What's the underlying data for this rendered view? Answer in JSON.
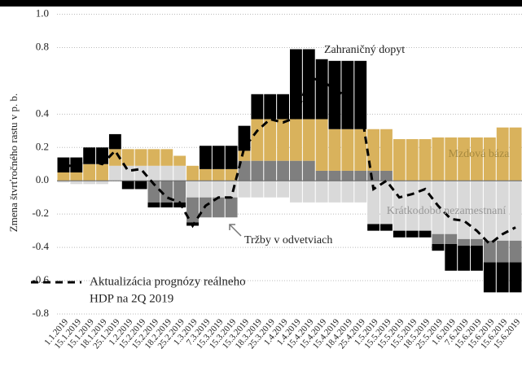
{
  "chart_data": {
    "type": "stacked_bar",
    "y_label": "Zmena štvrťročného rastu v p. b.",
    "categories": [
      "1.1.2019",
      "15.1.2019",
      "15.1.2019",
      "18.1.2019",
      "25.1.2019",
      "1.2.2019",
      "15.2.2019",
      "15.2.2019",
      "18.2.2019",
      "25.2.2019",
      "1.3.2019",
      "7.3.2019",
      "15.3.2019",
      "15.3.2019",
      "15.3.2019",
      "18.3.2019",
      "25.3.2019",
      "1.4.2019",
      "1.4.2019",
      "15.4.2019",
      "15.4.2019",
      "15.4.2019",
      "18.4.2019",
      "25.4.2019",
      "1.5.2019",
      "15.5.2019",
      "15.5.2019",
      "15.5.2019",
      "18.5.2019",
      "25.5.2019",
      "1.6.2019",
      "7.6.2019",
      "15.6.2019",
      "15.6.2019",
      "15.6.2019",
      "15.6.2019"
    ],
    "series": [
      {
        "name": "Krátkodobo nezamestnaní",
        "color": "#d9d9d9",
        "values": [
          -0.01,
          -0.02,
          -0.02,
          -0.02,
          0.09,
          0.09,
          0.09,
          0.09,
          0.09,
          0.09,
          -0.1,
          -0.1,
          -0.1,
          -0.1,
          -0.1,
          -0.1,
          -0.1,
          -0.1,
          -0.13,
          -0.13,
          -0.13,
          -0.13,
          -0.13,
          -0.13,
          -0.26,
          -0.26,
          -0.3,
          -0.3,
          -0.3,
          -0.32,
          -0.32,
          -0.35,
          -0.35,
          -0.36,
          -0.36,
          -0.36
        ]
      },
      {
        "name": "Tržby v odvetviach",
        "color": "#7f7f7f",
        "values": [
          0,
          0,
          0,
          0,
          0,
          0,
          0,
          -0.13,
          -0.13,
          -0.13,
          -0.15,
          -0.12,
          -0.12,
          -0.12,
          0.12,
          0.12,
          0.12,
          0.12,
          0.12,
          0.12,
          0.06,
          0.06,
          0.06,
          0.06,
          0.06,
          0.06,
          0,
          0,
          0,
          -0.06,
          -0.06,
          -0.04,
          -0.04,
          -0.13,
          -0.13,
          -0.13
        ]
      },
      {
        "name": "Mzdová báza",
        "color": "#d9b25c",
        "values": [
          0.05,
          0.05,
          0.1,
          0.1,
          0.1,
          0.1,
          0.1,
          0.1,
          0.1,
          0.06,
          0.09,
          0.07,
          0.07,
          0.07,
          0.06,
          0.25,
          0.25,
          0.25,
          0.25,
          0.25,
          0.31,
          0.25,
          0.25,
          0.25,
          0.25,
          0.25,
          0.25,
          0.25,
          0.25,
          0.26,
          0.26,
          0.26,
          0.26,
          0.26,
          0.32,
          0.32
        ]
      },
      {
        "name": "Zahraničný dopyt",
        "color": "#000000",
        "values": [
          0.09,
          0.09,
          0.1,
          0.1,
          0.09,
          -0.05,
          -0.05,
          -0.03,
          -0.03,
          -0.03,
          -0.02,
          0.14,
          0.14,
          0.14,
          0.15,
          0.15,
          0.15,
          0.15,
          0.42,
          0.42,
          0.36,
          0.41,
          0.41,
          0.41,
          -0.04,
          -0.04,
          -0.04,
          -0.04,
          -0.04,
          -0.04,
          -0.16,
          -0.15,
          -0.15,
          -0.18,
          -0.18,
          -0.18
        ]
      }
    ],
    "line": {
      "name": [
        "Aktualizácia prognózy reálneho",
        "HDP na 2Q 2019"
      ],
      "color": "#000000",
      "values": [
        0.08,
        0.1,
        0.12,
        0.1,
        0.18,
        0.06,
        0.07,
        -0.02,
        -0.1,
        -0.13,
        -0.27,
        -0.15,
        -0.1,
        -0.1,
        0.2,
        0.3,
        0.37,
        0.35,
        0.38,
        0.62,
        0.6,
        0.55,
        0.5,
        0.45,
        -0.05,
        0,
        -0.1,
        -0.08,
        -0.05,
        -0.15,
        -0.23,
        -0.24,
        -0.3,
        -0.38,
        -0.32,
        -0.28
      ]
    },
    "ylim": [
      -0.8,
      1.0
    ],
    "yticks": [
      {
        "value": 1.0,
        "label": "1.0"
      },
      0.8,
      0.4,
      0.2,
      {
        "value": 0,
        "label": "0.0"
      },
      -0.2,
      -0.4,
      -0.6,
      -0.8
    ],
    "grid": true
  }
}
